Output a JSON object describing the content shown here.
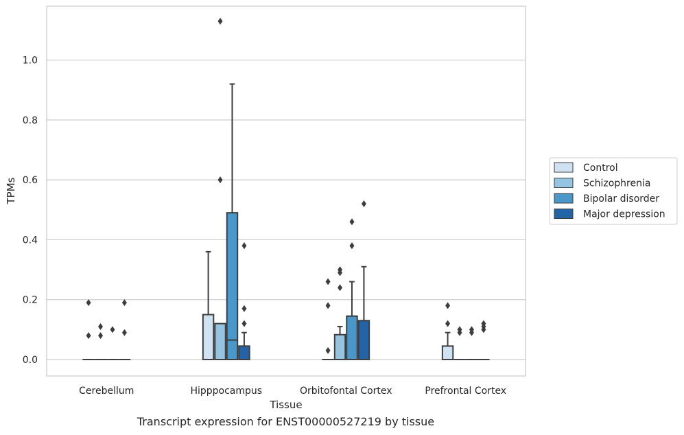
{
  "caption": "Transcript expression for ENST00000527219 by tissue",
  "chart_data": {
    "type": "box",
    "xlabel": "Tissue",
    "ylabel": "TPMs",
    "categories": [
      "Cerebellum",
      "Hipppocampus",
      "Orbitofontal Cortex",
      "Prefrontal Cortex"
    ],
    "ylim": [
      -0.055,
      1.18
    ],
    "yticks": [
      0.0,
      0.2,
      0.4,
      0.6,
      0.8,
      1.0
    ],
    "ytick_labels": [
      "0.0",
      "0.2",
      "0.4",
      "0.6",
      "0.8",
      "1.0"
    ],
    "grid": "horizontal",
    "legend_position": "right",
    "colors": [
      "#d0e1f2",
      "#94c4df",
      "#4a98c9",
      "#2363a6"
    ],
    "edge_color": "#3d3d3d",
    "series": [
      {
        "name": "Control",
        "boxes": [
          {
            "q1": 0,
            "median": 0,
            "q3": 0,
            "whislo": 0,
            "whishi": 0,
            "fliers": [
              0.19,
              0.08
            ]
          },
          {
            "q1": 0,
            "median": 0,
            "q3": 0.15,
            "whislo": 0,
            "whishi": 0.36,
            "fliers": []
          },
          {
            "q1": 0,
            "median": 0,
            "q3": 0,
            "whislo": 0,
            "whishi": 0,
            "fliers": [
              0.26,
              0.18,
              0.03
            ]
          },
          {
            "q1": 0,
            "median": 0,
            "q3": 0.045,
            "whislo": 0,
            "whishi": 0.09,
            "fliers": [
              0.18,
              0.12
            ]
          }
        ]
      },
      {
        "name": "Schizophrenia",
        "boxes": [
          {
            "q1": 0,
            "median": 0,
            "q3": 0,
            "whislo": 0,
            "whishi": 0,
            "fliers": [
              0.11,
              0.08
            ]
          },
          {
            "q1": 0,
            "median": 0,
            "q3": 0.12,
            "whislo": 0,
            "whishi": 0.12,
            "fliers": [
              1.13,
              0.6
            ]
          },
          {
            "q1": 0,
            "median": 0,
            "q3": 0.083,
            "whislo": 0,
            "whishi": 0.11,
            "fliers": [
              0.3,
              0.29,
              0.24
            ]
          },
          {
            "q1": 0,
            "median": 0,
            "q3": 0,
            "whislo": 0,
            "whishi": 0,
            "fliers": [
              0.1,
              0.09
            ]
          }
        ]
      },
      {
        "name": "Bipolar disorder",
        "boxes": [
          {
            "q1": 0,
            "median": 0,
            "q3": 0,
            "whislo": 0,
            "whishi": 0,
            "fliers": [
              0.1
            ]
          },
          {
            "q1": 0,
            "median": 0.065,
            "q3": 0.49,
            "whislo": 0,
            "whishi": 0.92,
            "fliers": []
          },
          {
            "q1": 0,
            "median": 0,
            "q3": 0.145,
            "whislo": 0,
            "whishi": 0.26,
            "fliers": [
              0.46,
              0.38
            ]
          },
          {
            "q1": 0,
            "median": 0,
            "q3": 0,
            "whislo": 0,
            "whishi": 0,
            "fliers": [
              0.1,
              0.09
            ]
          }
        ]
      },
      {
        "name": "Major depression",
        "boxes": [
          {
            "q1": 0,
            "median": 0,
            "q3": 0,
            "whislo": 0,
            "whishi": 0,
            "fliers": [
              0.19,
              0.09
            ]
          },
          {
            "q1": 0,
            "median": 0,
            "q3": 0.045,
            "whislo": 0,
            "whishi": 0.09,
            "fliers": [
              0.38,
              0.17,
              0.12
            ]
          },
          {
            "q1": 0,
            "median": 0,
            "q3": 0.13,
            "whislo": 0,
            "whishi": 0.31,
            "fliers": [
              0.52
            ]
          },
          {
            "q1": 0,
            "median": 0,
            "q3": 0,
            "whislo": 0,
            "whishi": 0,
            "fliers": [
              0.12,
              0.11,
              0.1
            ]
          }
        ]
      }
    ]
  }
}
